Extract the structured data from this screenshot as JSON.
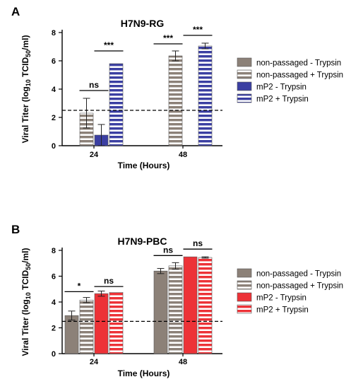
{
  "legend_labels": [
    "non-passaged - Trypsin",
    "non-passaged + Trypsin",
    "mP2 - Trypsin",
    "mP2 + Trypsin"
  ],
  "chart_data": [
    {
      "type": "bar",
      "panel_label": "A",
      "title": "H7N9-RG",
      "xlabel": "Time (Hours)",
      "ylabel": "Viral Titer (log10 TCID50/ml)",
      "ylim": [
        0,
        8
      ],
      "yticks": [
        0,
        2,
        4,
        6,
        8
      ],
      "categories": [
        "24",
        "48"
      ],
      "threshold": 2.5,
      "legend_placement": "right",
      "series": [
        {
          "name": "non-passaged - Trypsin",
          "values": [
            null,
            null
          ],
          "errors": [
            null,
            null
          ],
          "color": "#8c8178",
          "pattern": "solid"
        },
        {
          "name": "non-passaged + Trypsin",
          "values": [
            2.3,
            6.35
          ],
          "errors": [
            1.05,
            0.35
          ],
          "color": "#8c8178",
          "pattern": "stripes"
        },
        {
          "name": "mP2 - Trypsin",
          "values": [
            0.75,
            null
          ],
          "errors": [
            0.75,
            null
          ],
          "color": "#3b3fa2",
          "pattern": "solid"
        },
        {
          "name": "mP2 + Trypsin",
          "values": [
            5.8,
            7.05
          ],
          "errors": [
            0,
            0.2
          ],
          "color": "#3b3fa2",
          "pattern": "stripes"
        }
      ],
      "annotations": [
        {
          "text": "ns",
          "category": 0,
          "from_series": 1,
          "to_series": 2,
          "y": 3.9
        },
        {
          "text": "***",
          "category": 0,
          "from_series": 2,
          "to_series": 3,
          "y": 6.7
        },
        {
          "text": "***",
          "category": 1,
          "from_series": 0,
          "to_series": 1,
          "y": 7.2
        },
        {
          "text": "***",
          "category": 1,
          "from_series": 2,
          "to_series": 3,
          "y": 7.8
        }
      ]
    },
    {
      "type": "bar",
      "panel_label": "B",
      "title": "H7N9-PBC",
      "xlabel": "Time (Hours)",
      "ylabel": "Viral Titer (log10 TCID50/ml)",
      "ylim": [
        0,
        8
      ],
      "yticks": [
        0,
        2,
        4,
        6,
        8
      ],
      "categories": [
        "24",
        "48"
      ],
      "threshold": 2.5,
      "legend_placement": "right",
      "series": [
        {
          "name": "non-passaged - Trypsin",
          "values": [
            2.95,
            6.4
          ],
          "errors": [
            0.35,
            0.2
          ],
          "color": "#8c8178",
          "pattern": "solid"
        },
        {
          "name": "non-passaged + Trypsin",
          "values": [
            4.15,
            6.8
          ],
          "errors": [
            0.2,
            0.25
          ],
          "color": "#8c8178",
          "pattern": "stripes"
        },
        {
          "name": "mP2 - Trypsin",
          "values": [
            4.65,
            7.5
          ],
          "errors": [
            0.2,
            0
          ],
          "color": "#ed3237",
          "pattern": "solid"
        },
        {
          "name": "mP2 + Trypsin",
          "values": [
            4.75,
            7.45
          ],
          "errors": [
            0,
            0.05
          ],
          "color": "#ed3237",
          "pattern": "stripes"
        }
      ],
      "annotations": [
        {
          "text": "*",
          "category": 0,
          "from_series": 0,
          "to_series": 1,
          "y": 4.8
        },
        {
          "text": "ns",
          "category": 0,
          "from_series": 2,
          "to_series": 3,
          "y": 5.2
        },
        {
          "text": "ns",
          "category": 1,
          "from_series": 0,
          "to_series": 1,
          "y": 7.6
        },
        {
          "text": "ns",
          "category": 1,
          "from_series": 2,
          "to_series": 3,
          "y": 8.1
        }
      ]
    }
  ]
}
